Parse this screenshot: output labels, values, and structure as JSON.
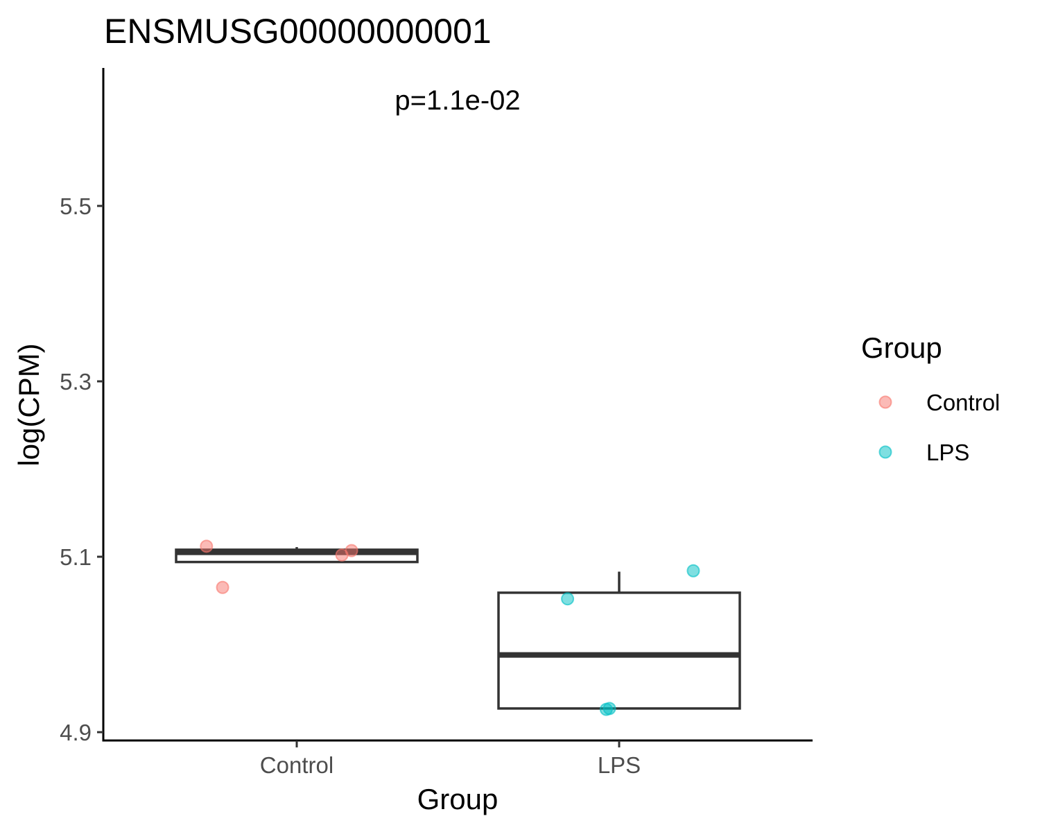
{
  "chart_data": {
    "type": "box",
    "title": "ENSMUSG00000000001",
    "xlabel": "Group",
    "ylabel": "log(CPM)",
    "categories": [
      "Control",
      "LPS"
    ],
    "ylim": [
      4.89,
      5.65
    ],
    "yticks": [
      4.9,
      5.1,
      5.3,
      5.5
    ],
    "ytick_labels": [
      "4.9",
      "5.1",
      "5.3",
      "5.5"
    ],
    "grid": false,
    "annotation": "p=1.1e-02",
    "legend": {
      "title": "Group",
      "position": "right",
      "entries": [
        {
          "label": "Control",
          "color": "#F8766D"
        },
        {
          "label": "LPS",
          "color": "#00BFC4"
        }
      ]
    },
    "boxes": [
      {
        "category": "Control",
        "min": 5.094,
        "q1": 5.094,
        "median": 5.105,
        "q3": 5.108,
        "max": 5.111
      },
      {
        "category": "LPS",
        "min": 4.927,
        "q1": 4.927,
        "median": 4.988,
        "q3": 5.059,
        "max": 5.083
      }
    ],
    "series": [
      {
        "name": "Control",
        "color": "#F8766D",
        "points": [
          {
            "x": "Control",
            "jitter": -0.28,
            "y": 5.112
          },
          {
            "x": "Control",
            "jitter": -0.23,
            "y": 5.065
          },
          {
            "x": "Control",
            "jitter": 0.14,
            "y": 5.102
          },
          {
            "x": "Control",
            "jitter": 0.17,
            "y": 5.107
          }
        ]
      },
      {
        "name": "LPS",
        "color": "#00BFC4",
        "points": [
          {
            "x": "LPS",
            "jitter": -0.16,
            "y": 5.052
          },
          {
            "x": "LPS",
            "jitter": -0.04,
            "y": 4.926
          },
          {
            "x": "LPS",
            "jitter": -0.03,
            "y": 4.927
          },
          {
            "x": "LPS",
            "jitter": 0.23,
            "y": 5.084
          }
        ]
      }
    ]
  }
}
